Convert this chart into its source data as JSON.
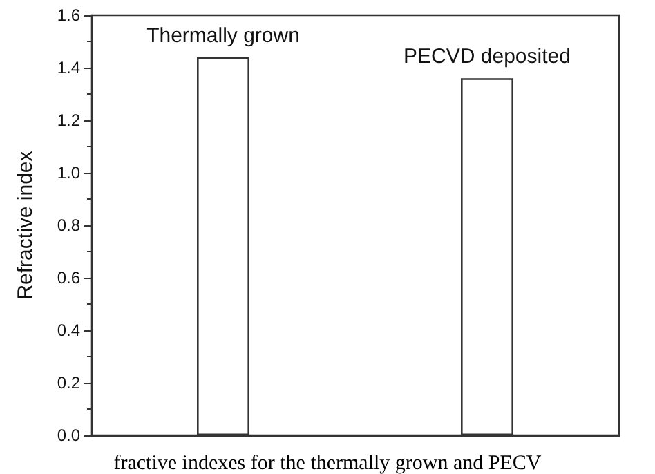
{
  "chart_data": {
    "type": "bar",
    "ylabel": "Refractive index",
    "categories": [
      "Thermally grown",
      "PECVD deposited"
    ],
    "values": [
      1.44,
      1.36
    ],
    "color": "#ffffff",
    "ylim": [
      0,
      1.6
    ],
    "yticks": [
      {
        "value": 0,
        "label": "0.0"
      },
      0.2,
      0.4,
      0.6,
      0.8,
      {
        "value": 1,
        "label": "1.0"
      },
      1.2,
      1.4,
      1.6
    ],
    "grid": false,
    "tick_labels": "y",
    "annotations": [
      "fractive indexes for the thermally grown and PECV"
    ]
  }
}
